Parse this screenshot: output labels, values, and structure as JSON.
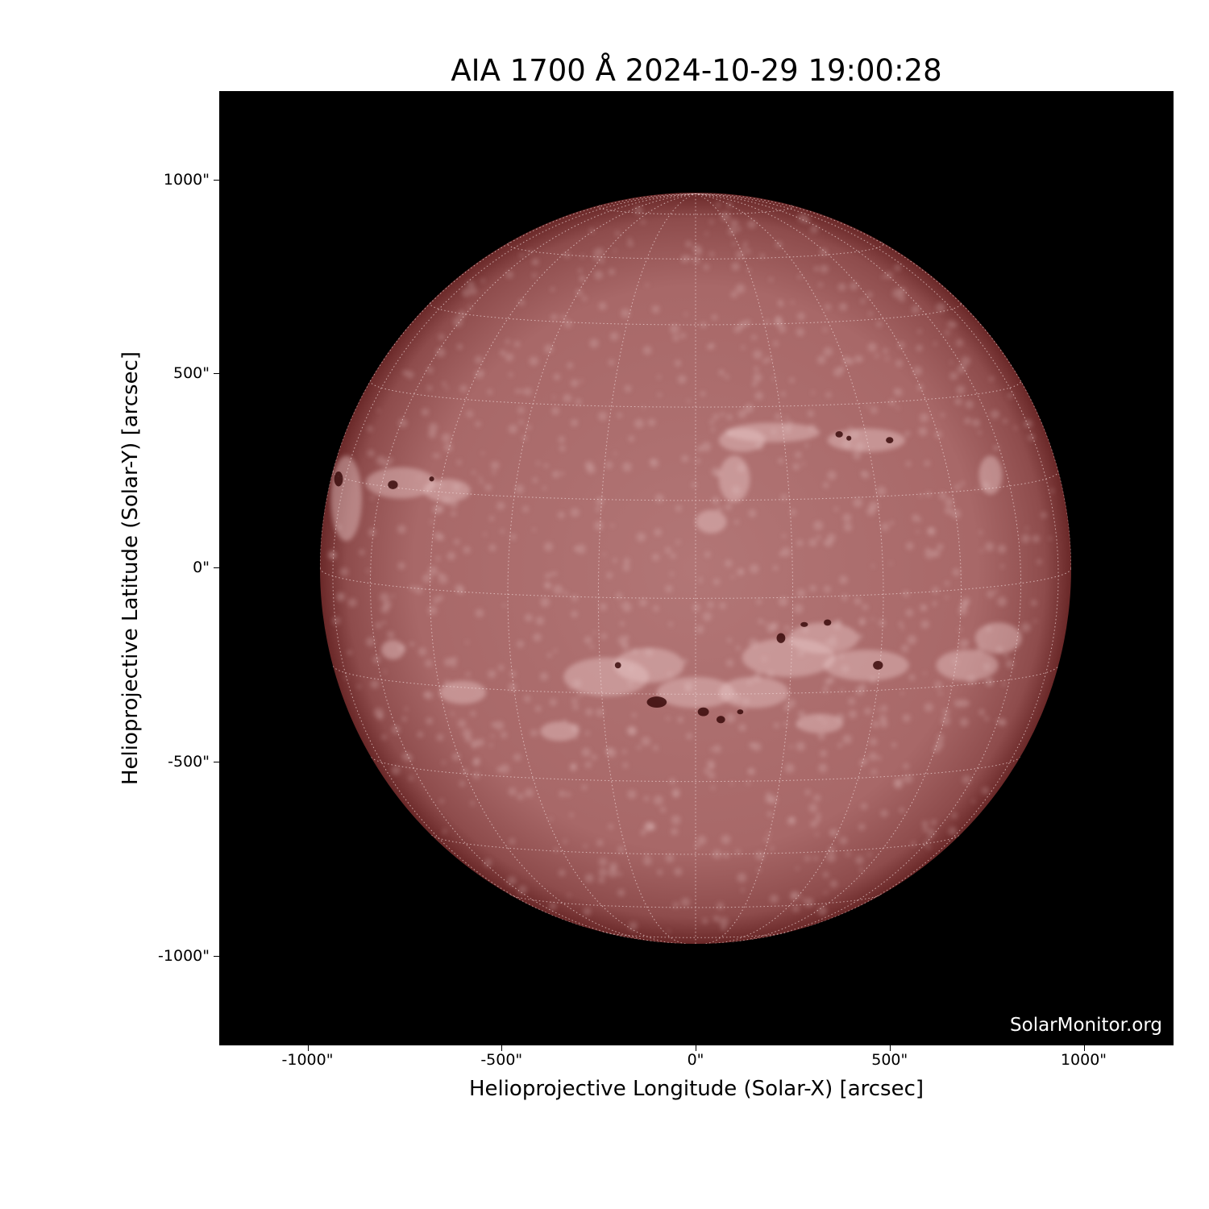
{
  "title": "AIA 1700 Å 2024-10-29 19:00:28",
  "xlabel": "Helioprojective Longitude (Solar-X) [arcsec]",
  "ylabel": "Helioprojective Latitude (Solar-Y) [arcsec]",
  "x_ticks": [
    "-1000\"",
    "-500\"",
    "0\"",
    "500\"",
    "1000\""
  ],
  "y_ticks": [
    "1000\"",
    "500\"",
    "0\"",
    "-500\"",
    "-1000\""
  ],
  "tick_values": [
    -1000,
    -500,
    0,
    500,
    1000
  ],
  "watermark": "SolarMonitor.org",
  "colors": {
    "disk": "#b07272",
    "limb": "#6e2a2a",
    "plage": "#e8c8c8",
    "sunspot": "#3a0a0a",
    "background": "#000000"
  }
}
